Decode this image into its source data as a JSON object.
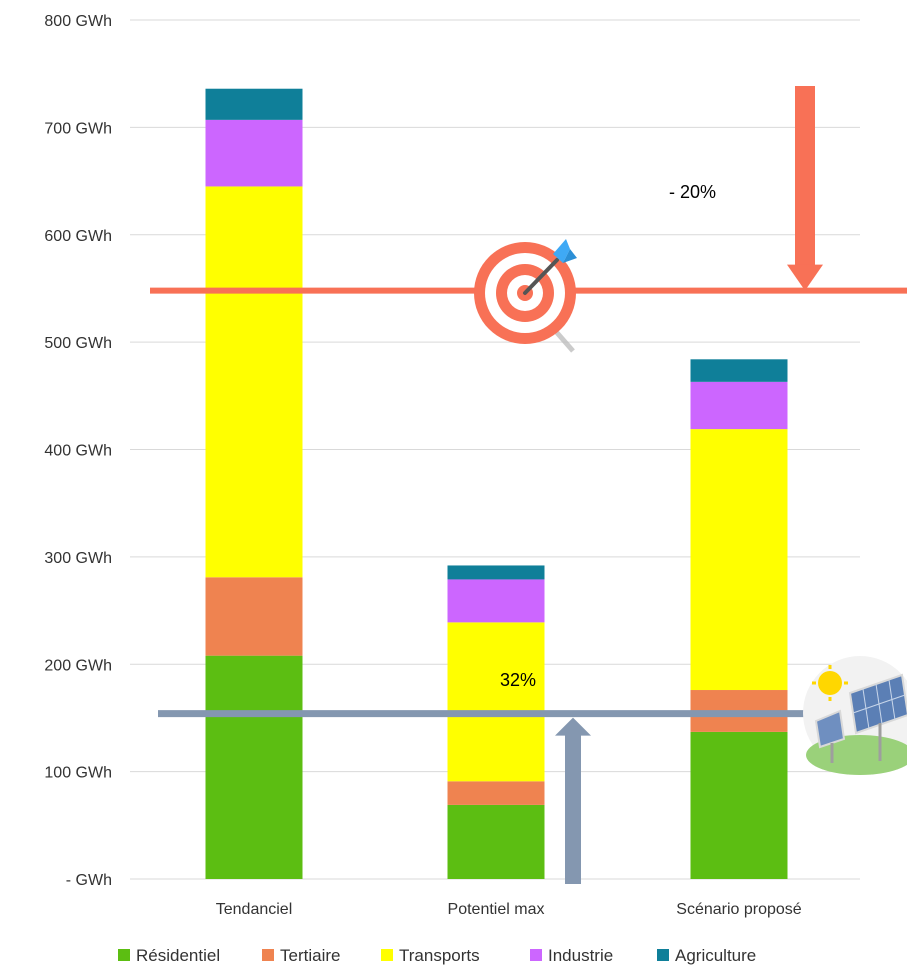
{
  "chart_data": {
    "type": "bar",
    "stacked": true,
    "title": "",
    "xlabel": "",
    "ylabel": "",
    "ylim": [
      0,
      800
    ],
    "grid": true,
    "legend_position": "bottom",
    "y_tick_labels": [
      "-   GWh",
      "100  GWh",
      "200  GWh",
      "300  GWh",
      "400  GWh",
      "500  GWh",
      "600  GWh",
      "700  GWh",
      "800  GWh"
    ],
    "y_tick_values": [
      0,
      100,
      200,
      300,
      400,
      500,
      600,
      700,
      800
    ],
    "categories": [
      "Tendanciel",
      "Potentiel max",
      "Scénario proposé"
    ],
    "series": [
      {
        "name": "Résidentiel",
        "color": "#5cbe12",
        "values": [
          208,
          69,
          137
        ]
      },
      {
        "name": "Tertiaire",
        "color": "#ef8350",
        "values": [
          73,
          22,
          39
        ]
      },
      {
        "name": "Transports",
        "color": "#ffff00",
        "values": [
          364,
          148,
          243
        ]
      },
      {
        "name": "Industrie",
        "color": "#cc66ff",
        "values": [
          62,
          40,
          44
        ]
      },
      {
        "name": "Agriculture",
        "color": "#0f7f99",
        "values": [
          29,
          13,
          21
        ]
      }
    ],
    "annotations": {
      "target_line": {
        "value": 548,
        "label": "- 20%",
        "color": "#f87156",
        "icon": "target-icon"
      },
      "renewable_line": {
        "value": 154,
        "label": "32%",
        "color": "#8497b0",
        "icon": "solar-panel-icon"
      }
    }
  }
}
